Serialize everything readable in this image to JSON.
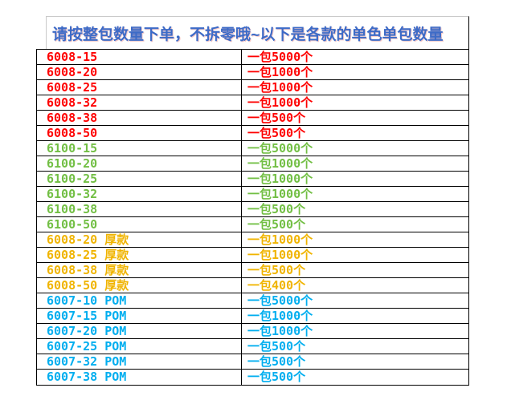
{
  "title": {
    "text": "请按整包数量下单，不拆零哦~以下是各款的单色单包数量",
    "color": "#3D6BC7"
  },
  "colors": {
    "red": "#FE0000",
    "green": "#72BF44",
    "gold": "#F0B400",
    "cyan": "#00AEEF",
    "grid": "#000000",
    "faint_grid": "#C9C9C9"
  },
  "table": {
    "columns": [
      "item_code",
      "pack_quantity"
    ],
    "rows": [
      {
        "item": "6008-15",
        "qty": "一包5000个",
        "color": "#FE0000"
      },
      {
        "item": "6008-20",
        "qty": "一包1000个",
        "color": "#FE0000"
      },
      {
        "item": "6008-25",
        "qty": "一包1000个",
        "color": "#FE0000"
      },
      {
        "item": "6008-32",
        "qty": "一包1000个",
        "color": "#FE0000"
      },
      {
        "item": "6008-38",
        "qty": "一包500个",
        "color": "#FE0000"
      },
      {
        "item": "6008-50",
        "qty": "一包500个",
        "color": "#FE0000"
      },
      {
        "item": "6100-15",
        "qty": "一包5000个",
        "color": "#72BF44"
      },
      {
        "item": "6100-20",
        "qty": "一包1000个",
        "color": "#72BF44"
      },
      {
        "item": "6100-25",
        "qty": "一包1000个",
        "color": "#72BF44"
      },
      {
        "item": "6100-32",
        "qty": "一包1000个",
        "color": "#72BF44"
      },
      {
        "item": "6100-38",
        "qty": "一包500个",
        "color": "#72BF44"
      },
      {
        "item": "6100-50",
        "qty": "一包500个",
        "color": "#72BF44"
      },
      {
        "item": "6008-20 厚款",
        "qty": "一包1000个",
        "color": "#F0B400"
      },
      {
        "item": "6008-25 厚款",
        "qty": "一包1000个",
        "color": "#F0B400"
      },
      {
        "item": "6008-38 厚款",
        "qty": "一包500个",
        "color": "#F0B400"
      },
      {
        "item": "6008-50 厚款",
        "qty": "一包400个",
        "color": "#F0B400"
      },
      {
        "item": "6007-10 POM",
        "qty": "一包5000个",
        "color": "#00AEEF"
      },
      {
        "item": "6007-15 POM",
        "qty": "一包1000个",
        "color": "#00AEEF"
      },
      {
        "item": "6007-20 POM",
        "qty": "一包1000个",
        "color": "#00AEEF"
      },
      {
        "item": "6007-25 POM",
        "qty": "一包500个",
        "color": "#00AEEF"
      },
      {
        "item": "6007-32 POM",
        "qty": "一包500个",
        "color": "#00AEEF"
      },
      {
        "item": "6007-38 POM",
        "qty": "一包500个",
        "color": "#00AEEF"
      }
    ]
  }
}
